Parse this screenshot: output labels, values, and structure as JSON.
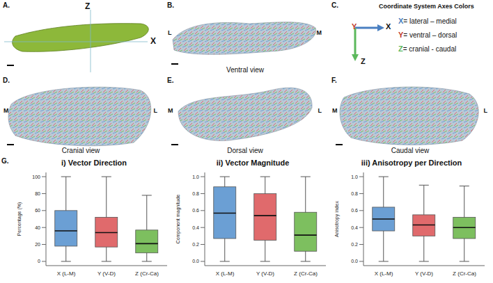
{
  "panels": {
    "A": {
      "label": "A.",
      "axes": [
        "Z",
        "X"
      ]
    },
    "B": {
      "label": "B.",
      "sides": [
        "L",
        "M"
      ],
      "caption": "Ventral view"
    },
    "C": {
      "label": "C.",
      "title": "Coordinate System Axes Colors",
      "axes": [
        {
          "name": "X",
          "text": "= lateral – medial",
          "color": "#4a7fc1"
        },
        {
          "name": "Y",
          "text": "= ventral – dorsal",
          "color": "#c0392b"
        },
        {
          "name": "Z",
          "text": "= cranial - caudal",
          "color": "#5cb85c"
        }
      ]
    },
    "D": {
      "label": "D.",
      "sides": [
        "M",
        "L"
      ],
      "caption": "Cranial view"
    },
    "E": {
      "label": "E.",
      "sides": [
        "M",
        "L"
      ],
      "caption": "Dorsal view"
    },
    "F": {
      "label": "F.",
      "sides": [
        "M",
        "L"
      ],
      "caption": "Caudal view"
    },
    "G": {
      "label": "G."
    }
  },
  "chart_data": [
    {
      "type": "box",
      "title": "i) Vector Direction",
      "y_label": "Percentage (%)",
      "categories": [
        "X (L-M)",
        "Y (V-D)",
        "Z (Cr-Ca)"
      ],
      "colors": [
        "#6b9fd4",
        "#e06a6c",
        "#7dbf5f"
      ],
      "min": [
        0,
        0,
        0
      ],
      "q1": [
        18,
        17,
        10
      ],
      "median": [
        36,
        34,
        21
      ],
      "q3": [
        60,
        52,
        37
      ],
      "max": [
        100,
        100,
        78
      ],
      "ylim": [
        -5,
        105
      ],
      "yticks": [
        0,
        20,
        40,
        60,
        80,
        100
      ]
    },
    {
      "type": "box",
      "title": "ii) Vector Magnitude",
      "y_label": "Component magnitude",
      "categories": [
        "X (L-M)",
        "Y (V-D)",
        "Z (Cr-Ca)"
      ],
      "colors": [
        "#6b9fd4",
        "#e06a6c",
        "#7dbf5f"
      ],
      "min": [
        0,
        0,
        0
      ],
      "q1": [
        0.27,
        0.25,
        0.12
      ],
      "median": [
        0.57,
        0.54,
        0.31
      ],
      "q3": [
        0.88,
        0.8,
        0.58
      ],
      "max": [
        1,
        1,
        1
      ],
      "ylim": [
        -0.05,
        1.05
      ],
      "yticks": [
        {
          "value": 0,
          "label": "0.0"
        },
        0.2,
        0.4,
        0.6,
        0.8,
        {
          "value": 1,
          "label": "1.0"
        }
      ]
    },
    {
      "type": "box",
      "title": "iii) Anisotropy per Direction",
      "y_label": "Anisotropy index",
      "categories": [
        "X (L-M)",
        "Y (V-D)",
        "Z (Cr-Ca)"
      ],
      "colors": [
        "#6b9fd4",
        "#e06a6c",
        "#7dbf5f"
      ],
      "min": [
        0,
        0,
        0
      ],
      "q1": [
        0.36,
        0.3,
        0.27
      ],
      "median": [
        0.5,
        0.43,
        0.4
      ],
      "q3": [
        0.64,
        0.55,
        0.52
      ],
      "max": [
        1,
        0.9,
        0.89
      ],
      "ylim": [
        -0.05,
        1.05
      ],
      "yticks": [
        {
          "value": 0,
          "label": "0.0"
        },
        0.2,
        0.4,
        0.6,
        0.8,
        {
          "value": 1,
          "label": "1.0"
        }
      ]
    }
  ]
}
